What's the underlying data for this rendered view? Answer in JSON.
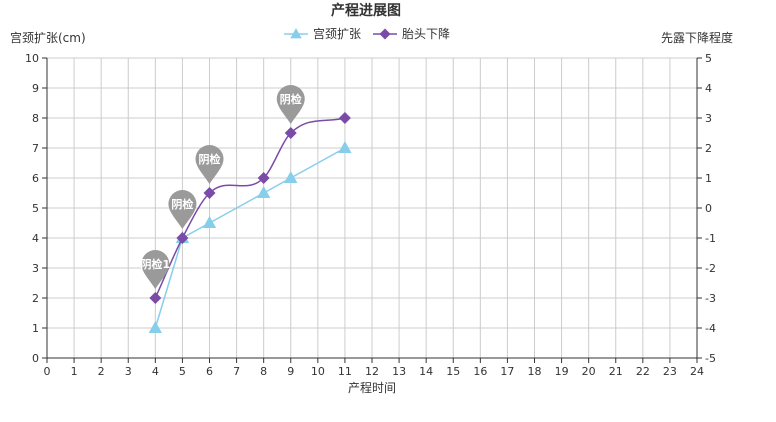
{
  "chart_data": {
    "type": "line",
    "title": "产程进展图",
    "xlabel": "产程时间",
    "ylabel_left": "宫颈扩张(cm)",
    "ylabel_right": "先露下降程度",
    "xlim": [
      0,
      24
    ],
    "ylim_left": [
      0,
      10
    ],
    "ylim_right": [
      -5,
      5
    ],
    "x_ticks": [
      0,
      1,
      2,
      3,
      4,
      5,
      6,
      7,
      8,
      9,
      10,
      11,
      12,
      13,
      14,
      15,
      16,
      17,
      18,
      19,
      20,
      21,
      22,
      23,
      24
    ],
    "y_ticks_left": [
      0,
      1,
      2,
      3,
      4,
      5,
      6,
      7,
      8,
      9,
      10
    ],
    "y_ticks_right": [
      -5,
      -4,
      -3,
      -2,
      -1,
      0,
      1,
      2,
      3,
      4,
      5
    ],
    "grid": true,
    "legend_position": "top-center",
    "series": [
      {
        "name": "宫颈扩张",
        "axis": "left",
        "marker": "triangle",
        "color": "#87CEEB",
        "x": [
          4,
          5,
          6,
          8,
          9,
          11
        ],
        "values": [
          1,
          4,
          4.5,
          5.5,
          6,
          7
        ]
      },
      {
        "name": "胎头下降",
        "axis": "right",
        "marker": "diamond",
        "color": "#7B4BA8",
        "x": [
          4,
          5,
          6,
          8,
          9,
          11
        ],
        "values": [
          -3,
          -1,
          0.5,
          1,
          2.5,
          3
        ]
      }
    ],
    "annotations": [
      {
        "label": "阴检1",
        "x": 4,
        "series": 1
      },
      {
        "label": "阴检",
        "x": 5,
        "series": 1
      },
      {
        "label": "阴检",
        "x": 6,
        "series": 1
      },
      {
        "label": "阴检",
        "x": 9,
        "series": 1
      }
    ],
    "pin_color": "#9a9a9a"
  }
}
